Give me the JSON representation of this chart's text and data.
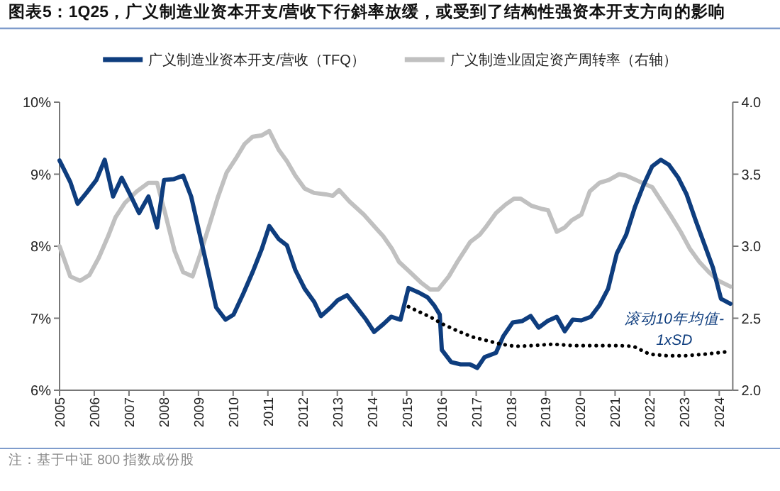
{
  "chart_data": {
    "type": "line",
    "title": "图表5：1Q25，广义制造业资本开支/营收下行斜率放缓，或受到了结构性强资本开支方向的影响",
    "xlim": [
      2005,
      2024.39
    ],
    "xticks": [
      2005,
      2006,
      2007,
      2008,
      2009,
      2010,
      2011,
      2012,
      2013,
      2014,
      2015,
      2016,
      2017,
      2018,
      2019,
      2020,
      2021,
      2022,
      2023,
      2024
    ],
    "ylim": [
      6,
      10
    ],
    "yticks": [
      {
        "value": 6,
        "label": "6%"
      },
      {
        "value": 7,
        "label": "7%"
      },
      {
        "value": 8,
        "label": "8%"
      },
      {
        "value": 9,
        "label": "9%"
      },
      {
        "value": 10,
        "label": "10%"
      }
    ],
    "y2lim": [
      2,
      4
    ],
    "y2ticks": [
      {
        "value": 2,
        "label": "2.0"
      },
      {
        "value": 2.5,
        "label": "2.5"
      },
      {
        "value": 3,
        "label": "3.0"
      },
      {
        "value": 3.5,
        "label": "3.5"
      },
      {
        "value": 4,
        "label": "4.0"
      }
    ],
    "grid": false,
    "legend": "top",
    "marker": "none",
    "annotations": [
      {
        "text": "滚动10年均值-1xSD",
        "x": 2022.5,
        "y": 6.48
      },
      "注：基于中证 800 指数成份股"
    ],
    "series": [
      {
        "name": "广义制造业资本开支/营收（TFQ）",
        "color": "#0e3d7e",
        "line_style": "solid",
        "x": [
          2005.0,
          2005.31,
          2005.52,
          2005.79,
          2006.06,
          2006.3,
          2006.54,
          2006.79,
          2007.06,
          2007.29,
          2007.56,
          2007.81,
          2008.01,
          2008.28,
          2008.56,
          2008.79,
          2009.02,
          2009.27,
          2009.51,
          2009.78,
          2010.01,
          2010.29,
          2010.56,
          2010.83,
          2011.04,
          2011.31,
          2011.55,
          2011.79,
          2012.06,
          2012.33,
          2012.53,
          2012.81,
          2013.01,
          2013.28,
          2013.56,
          2013.83,
          2014.06,
          2014.33,
          2014.55,
          2014.82,
          2015.05,
          2015.33,
          2015.6,
          2015.8,
          2015.95,
          2016.01,
          2016.28,
          2016.55,
          2016.82,
          2017.03,
          2017.24,
          2017.57,
          2017.78,
          2018.05,
          2018.32,
          2018.57,
          2018.8,
          2019.05,
          2019.32,
          2019.55,
          2019.78,
          2020.03,
          2020.3,
          2020.55,
          2020.8,
          2021.05,
          2021.32,
          2021.57,
          2021.82,
          2022.07,
          2022.32,
          2022.55,
          2022.82,
          2023.06,
          2023.32,
          2023.57,
          2023.82,
          2024.05,
          2024.32
        ],
        "values": [
          9.19,
          8.89,
          8.59,
          8.75,
          8.92,
          9.2,
          8.69,
          8.95,
          8.69,
          8.46,
          8.69,
          8.26,
          8.92,
          8.93,
          8.98,
          8.69,
          8.2,
          7.67,
          7.15,
          6.98,
          7.05,
          7.34,
          7.64,
          7.97,
          8.28,
          8.1,
          8.01,
          7.67,
          7.41,
          7.23,
          7.03,
          7.15,
          7.25,
          7.32,
          7.15,
          6.98,
          6.81,
          6.92,
          7.02,
          6.98,
          7.42,
          7.36,
          7.29,
          7.17,
          7.05,
          6.56,
          6.39,
          6.36,
          6.36,
          6.31,
          6.46,
          6.52,
          6.75,
          6.94,
          6.96,
          7.03,
          6.87,
          6.96,
          7.02,
          6.82,
          6.98,
          6.97,
          7.02,
          7.18,
          7.41,
          7.9,
          8.16,
          8.54,
          8.85,
          9.11,
          9.2,
          9.13,
          8.95,
          8.72,
          8.36,
          8.03,
          7.7,
          7.27,
          7.2
        ]
      },
      {
        "name": "广义制造业固定资产周转率（右轴）",
        "color": "#c0c0c0",
        "line_style": "solid",
        "axis": "y2",
        "x": [
          2005.0,
          2005.31,
          2005.59,
          2005.86,
          2006.13,
          2006.4,
          2006.61,
          2006.88,
          2007.22,
          2007.56,
          2007.81,
          2008.04,
          2008.31,
          2008.56,
          2008.83,
          2009.06,
          2009.33,
          2009.56,
          2009.81,
          2010.08,
          2010.33,
          2010.56,
          2010.83,
          2011.04,
          2011.31,
          2011.55,
          2011.79,
          2012.06,
          2012.33,
          2012.67,
          2012.87,
          2013.05,
          2013.35,
          2013.76,
          2014.17,
          2014.32,
          2014.58,
          2014.78,
          2015.05,
          2015.4,
          2015.67,
          2015.91,
          2016.21,
          2016.48,
          2016.83,
          2017.1,
          2017.3,
          2017.57,
          2017.85,
          2018.09,
          2018.28,
          2018.6,
          2018.87,
          2019.07,
          2019.32,
          2019.55,
          2019.75,
          2020.03,
          2020.27,
          2020.55,
          2020.82,
          2021.12,
          2021.32,
          2021.6,
          2021.87,
          2022.07,
          2022.34,
          2022.61,
          2022.89,
          2023.16,
          2023.43,
          2023.7,
          2023.98,
          2024.32
        ],
        "values": [
          3.0,
          2.79,
          2.76,
          2.8,
          2.92,
          3.07,
          3.2,
          3.3,
          3.38,
          3.44,
          3.44,
          3.23,
          2.97,
          2.82,
          2.79,
          2.95,
          3.16,
          3.34,
          3.51,
          3.61,
          3.71,
          3.76,
          3.77,
          3.8,
          3.67,
          3.59,
          3.49,
          3.4,
          3.37,
          3.36,
          3.35,
          3.39,
          3.31,
          3.22,
          3.11,
          3.07,
          2.98,
          2.89,
          2.83,
          2.75,
          2.7,
          2.7,
          2.79,
          2.9,
          3.03,
          3.08,
          3.14,
          3.23,
          3.29,
          3.33,
          3.33,
          3.28,
          3.26,
          3.25,
          3.1,
          3.13,
          3.18,
          3.22,
          3.38,
          3.44,
          3.46,
          3.5,
          3.49,
          3.46,
          3.43,
          3.41,
          3.31,
          3.21,
          3.1,
          2.98,
          2.89,
          2.82,
          2.76,
          2.72
        ]
      },
      {
        "color": "#000000",
        "line_style": "dotted",
        "x": [
          2015.05,
          2015.4,
          2015.67,
          2016.03,
          2016.48,
          2016.89,
          2017.3,
          2017.71,
          2018.12,
          2018.66,
          2019.21,
          2019.75,
          2020.3,
          2021.12,
          2021.53,
          2022.0,
          2022.48,
          2023.03,
          2023.57,
          2024.32
        ],
        "values": [
          7.16,
          7.08,
          7.02,
          6.92,
          6.82,
          6.74,
          6.69,
          6.64,
          6.61,
          6.62,
          6.64,
          6.62,
          6.62,
          6.62,
          6.61,
          6.5,
          6.48,
          6.48,
          6.5,
          6.54
        ]
      }
    ]
  }
}
